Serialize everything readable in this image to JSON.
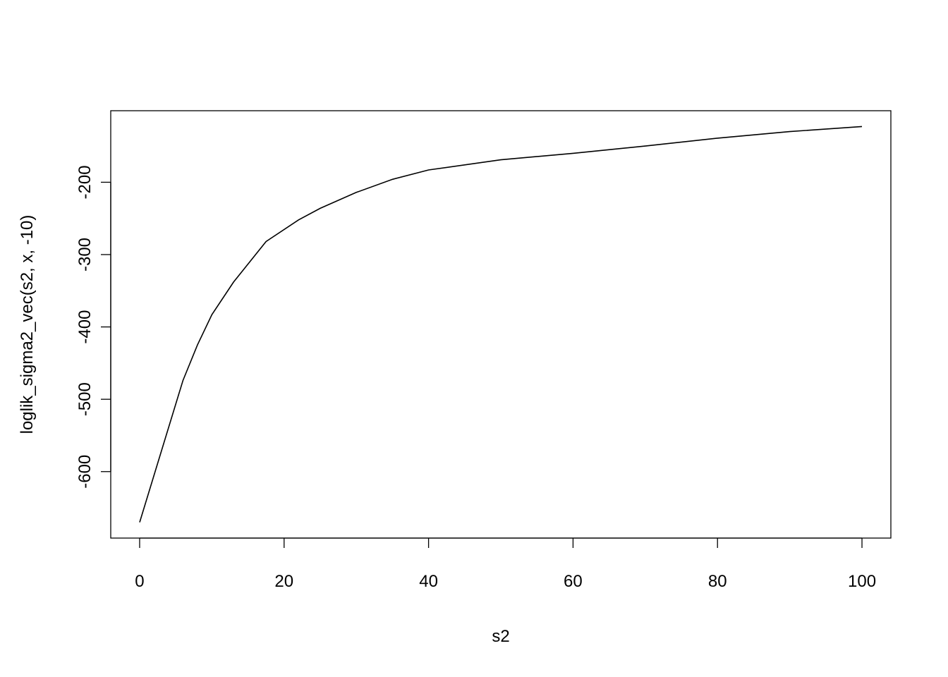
{
  "chart_data": {
    "type": "line",
    "title": "",
    "xlabel": "s2",
    "ylabel": "loglik_sigma2_vec(s2, x, -10)",
    "xlim": [
      0,
      100
    ],
    "ylim": [
      -670,
      -123
    ],
    "xticks": [
      0,
      20,
      40,
      60,
      80,
      100
    ],
    "xtick_labels": [
      "0",
      "20",
      "40",
      "60",
      "80",
      "100"
    ],
    "yticks": [
      -600,
      -500,
      -400,
      -300,
      -200
    ],
    "ytick_labels": [
      "-600",
      "-500",
      "-400",
      "-300",
      "-200"
    ],
    "grid": false,
    "line_color": "#000000",
    "series": [
      {
        "x": [
          0,
          3,
          6,
          8,
          10,
          13,
          17.5,
          22,
          25,
          30,
          35,
          40,
          50,
          60,
          70,
          80,
          90,
          100
        ],
        "y": [
          -670,
          -572,
          -474,
          -425,
          -383,
          -338,
          -282,
          -252,
          -236,
          -214,
          -196,
          -183,
          -169,
          -160,
          -150,
          -139,
          -130,
          -123
        ]
      }
    ]
  }
}
